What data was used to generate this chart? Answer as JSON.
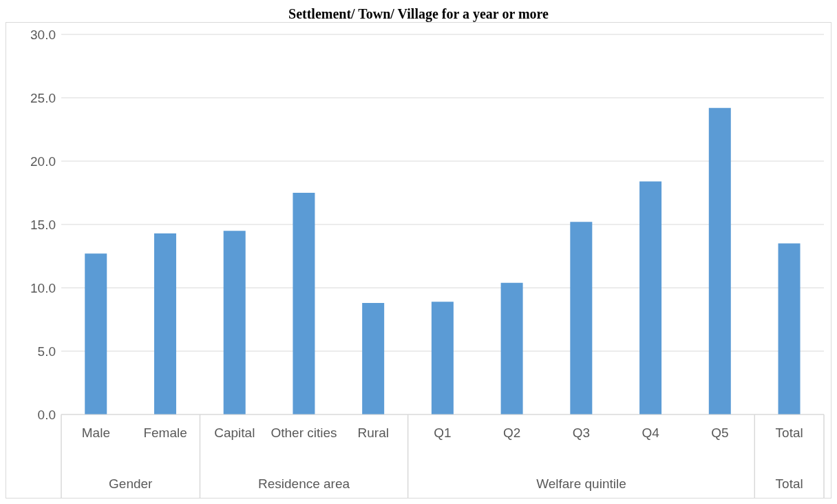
{
  "chart_data": {
    "type": "bar",
    "title": "Settlement/ Town/ Village for a year or more",
    "categories": [
      "Male",
      "Female",
      "Capital",
      "Other cities",
      "Rural",
      "Q1",
      "Q2",
      "Q3",
      "Q4",
      "Q5",
      "Total"
    ],
    "values": [
      12.7,
      14.3,
      14.5,
      17.5,
      8.8,
      8.9,
      10.4,
      15.2,
      18.4,
      24.2,
      13.5
    ],
    "color": "#5b9bd5",
    "ylim": [
      0,
      30
    ],
    "yticks": [
      {
        "value": 0,
        "label": "0.0"
      },
      {
        "value": 5,
        "label": "5.0"
      },
      {
        "value": 10,
        "label": "10.0"
      },
      {
        "value": 15,
        "label": "15.0"
      },
      {
        "value": 20,
        "label": "20.0"
      },
      {
        "value": 25,
        "label": "25.0"
      },
      {
        "value": 30,
        "label": "30.0"
      }
    ],
    "grid": "y",
    "annotations": [
      "Gender",
      "Residence area",
      "Welfare quintile",
      "Total"
    ]
  }
}
